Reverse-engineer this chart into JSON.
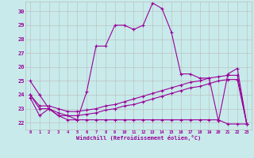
{
  "bg_color": "#c8eaea",
  "line_color": "#990099",
  "grid_color": "#bbbbbb",
  "xlabel": "Windchill (Refroidissement éolien,°C)",
  "x_ticks": [
    0,
    1,
    2,
    3,
    4,
    5,
    6,
    7,
    8,
    9,
    10,
    11,
    12,
    13,
    14,
    15,
    16,
    17,
    18,
    19,
    20,
    21,
    22,
    23
  ],
  "ylim": [
    21.5,
    30.7
  ],
  "yticks": [
    22,
    23,
    24,
    25,
    26,
    27,
    28,
    29,
    30
  ],
  "line1_y": [
    25.0,
    24.0,
    23.0,
    22.5,
    22.5,
    22.2,
    24.2,
    27.5,
    27.5,
    29.0,
    29.0,
    28.7,
    29.0,
    30.6,
    30.2,
    28.5,
    25.5,
    25.5,
    25.2,
    25.2,
    22.1,
    25.5,
    25.9,
    21.9
  ],
  "line2_y": [
    23.8,
    22.5,
    23.0,
    22.5,
    22.2,
    22.2,
    22.2,
    22.2,
    22.2,
    22.2,
    22.2,
    22.2,
    22.2,
    22.2,
    22.2,
    22.2,
    22.2,
    22.2,
    22.2,
    22.2,
    22.2,
    21.9,
    21.9,
    21.9
  ],
  "line3_y": [
    24.0,
    23.0,
    23.0,
    22.7,
    22.5,
    22.5,
    22.6,
    22.7,
    22.9,
    23.0,
    23.2,
    23.3,
    23.5,
    23.7,
    23.9,
    24.1,
    24.3,
    24.5,
    24.6,
    24.8,
    25.0,
    25.1,
    25.1,
    21.9
  ],
  "line4_y": [
    24.0,
    23.2,
    23.2,
    23.0,
    22.8,
    22.8,
    22.9,
    23.0,
    23.2,
    23.3,
    23.5,
    23.7,
    23.9,
    24.1,
    24.3,
    24.5,
    24.7,
    24.9,
    25.0,
    25.2,
    25.3,
    25.4,
    25.4,
    21.9
  ]
}
